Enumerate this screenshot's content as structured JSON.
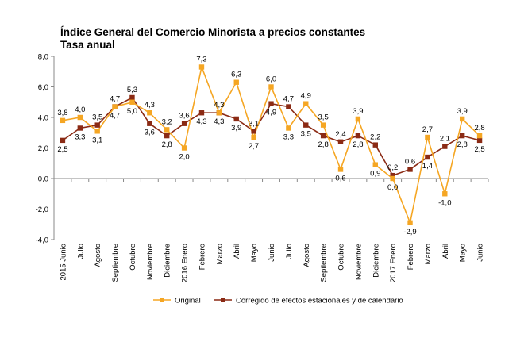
{
  "title": "Índice General del Comercio Minorista a precios constantes",
  "subtitle": "Tasa anual",
  "chart_data": {
    "type": "line",
    "title": "Índice General del Comercio Minorista a precios constantes",
    "subtitle": "Tasa anual",
    "xlabel": "",
    "ylabel": "",
    "ylim": [
      -4.0,
      8.0
    ],
    "y_ticks": [
      "8,0",
      "6,0",
      "4,0",
      "2,0",
      "0,0",
      "-2,0",
      "-4,0"
    ],
    "grid": false,
    "legend_position": "bottom",
    "categories": [
      "2015 Junio",
      "Julio",
      "Agosto",
      "Septiembre",
      "Octubre",
      "Noviembre",
      "Diciembre",
      "2016 Enero",
      "Febrero",
      "Marzo",
      "Abril",
      "Mayo",
      "Junio",
      "Julio",
      "Agosto",
      "Septiembre",
      "Octubre",
      "Noviembre",
      "Diciembre",
      "2017 Enero",
      "Febrero",
      "Marzo",
      "Abril",
      "Mayo",
      "Junio"
    ],
    "series": [
      {
        "name": "Original",
        "color": "#f5a623",
        "values": [
          3.8,
          4.0,
          3.1,
          4.7,
          5.0,
          4.3,
          3.2,
          2.0,
          7.3,
          4.3,
          6.3,
          2.7,
          6.0,
          3.3,
          4.9,
          3.5,
          0.6,
          3.9,
          0.9,
          0.0,
          -2.9,
          2.7,
          -1.0,
          3.9,
          2.8
        ],
        "labels": [
          "3,8",
          "4,0",
          "3,1",
          "4,7",
          "5,0",
          "4,3",
          "3,2",
          "2,0",
          "7,3",
          "4,3",
          "6,3",
          "2,7",
          "6,0",
          "3,3",
          "4,9",
          "3,5",
          "0,6",
          "3,9",
          "0,9",
          "0,0",
          "-2,9",
          "2,7",
          "-1,0",
          "3,9",
          "2,8"
        ]
      },
      {
        "name": "Corregido de efectos estacionales y de calendario",
        "color": "#8b2a14",
        "values": [
          2.5,
          3.3,
          3.5,
          4.7,
          5.3,
          3.6,
          2.8,
          3.6,
          4.3,
          4.3,
          3.9,
          3.1,
          4.9,
          4.7,
          3.5,
          2.8,
          2.4,
          2.8,
          2.2,
          0.2,
          0.6,
          1.4,
          2.1,
          2.8,
          2.5
        ],
        "labels": [
          "2,5",
          "3,3",
          "3,5",
          "4,7",
          "5,3",
          "3,6",
          "2,8",
          "3,6",
          "4,3",
          "4,3",
          "3,9",
          "3,1",
          "4,9",
          "4,7",
          "3,5",
          "2,8",
          "2,4",
          "2,8",
          "2,2",
          "0,2",
          "0,6",
          "1,4",
          "2,1",
          "2,8",
          "2,5"
        ]
      }
    ]
  }
}
